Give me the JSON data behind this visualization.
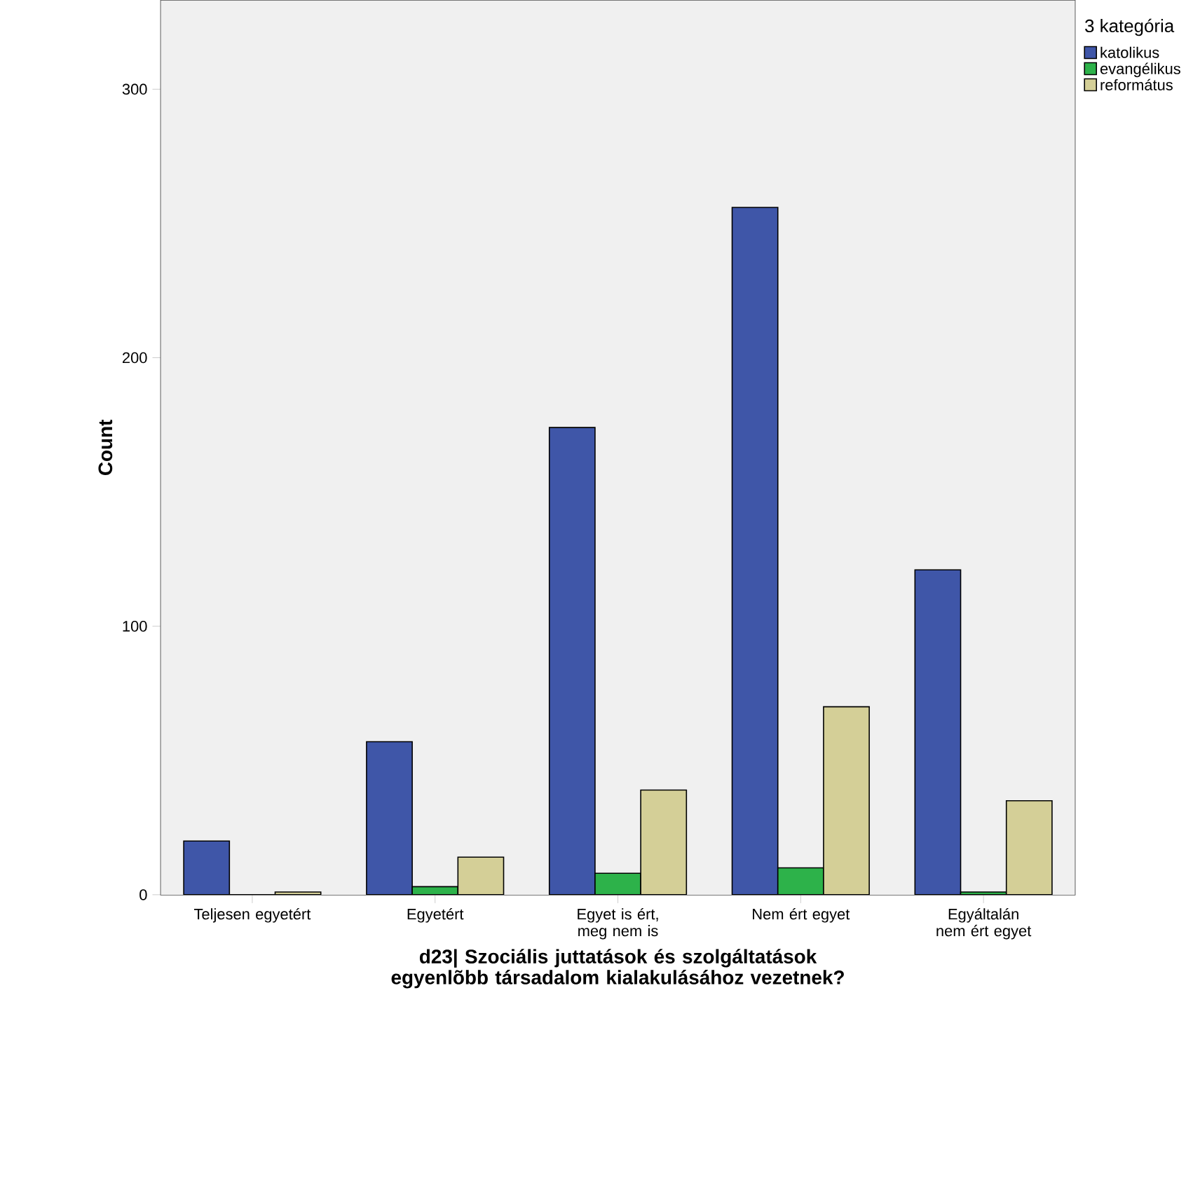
{
  "chart_data": {
    "type": "bar",
    "xlabel": "d23| Szociális juttatások és szolgáltatások egyenlõbb társadalom kialakulásához vezetnek?",
    "ylabel": "Count",
    "legend_title": "3 kategória",
    "categories": [
      "Teljesen egyetért",
      "Egyetért",
      "Egyet is ért, meg nem is",
      "Nem ért egyet",
      "Egyáltalán nem ért egyet"
    ],
    "series": [
      {
        "name": "katolikus",
        "color": "#3f56a8",
        "values": [
          20,
          57,
          174,
          256,
          121
        ]
      },
      {
        "name": "evangélikus",
        "color": "#2db24a",
        "values": [
          0,
          3,
          8,
          10,
          1
        ]
      },
      {
        "name": "református",
        "color": "#d4cf97",
        "values": [
          1,
          14,
          39,
          70,
          35
        ]
      }
    ],
    "ylim": [
      0,
      333
    ],
    "yticks": [
      0,
      100,
      200,
      300
    ],
    "legend": "top right"
  }
}
